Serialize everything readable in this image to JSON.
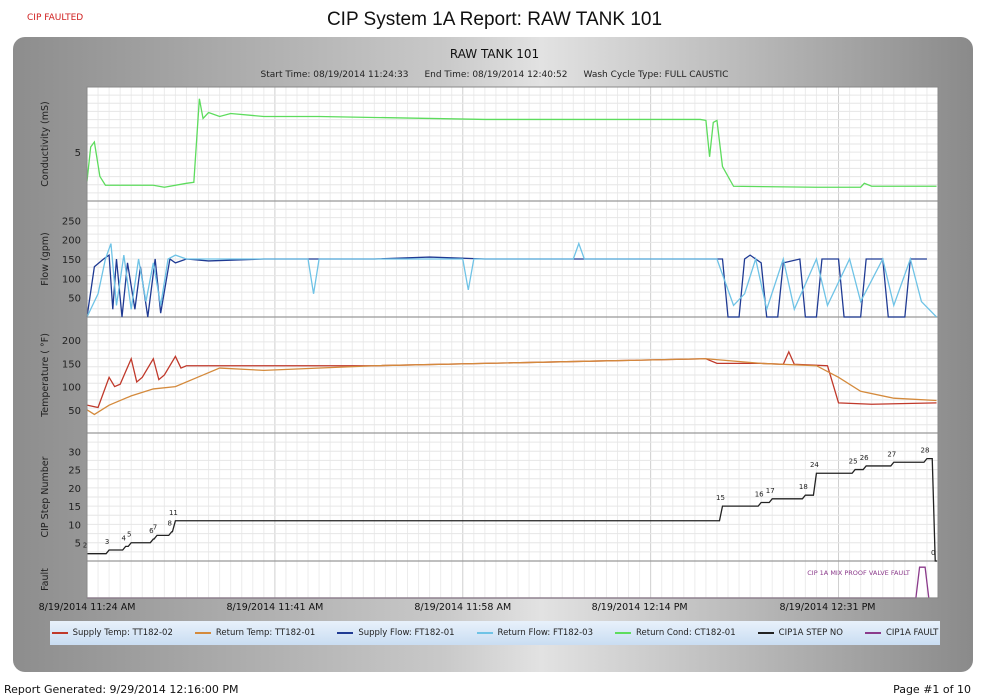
{
  "header": {
    "fault_status": "CIP FAULTED",
    "title": "CIP System 1A Report: RAW TANK 101"
  },
  "footer": {
    "generated": "Report Generated: 9/29/2014 12:16:00 PM",
    "page": "Page #1 of 10"
  },
  "chart_data": {
    "type": "line",
    "title": "RAW TANK 101",
    "subtitle": {
      "start": "Start Time: 08/19/2014 11:24:33",
      "end": "End Time: 08/19/2014 12:40:52",
      "wash": "Wash Cycle Type: FULL CAUSTIC"
    },
    "x_ticks": [
      "8/19/2014 11:24 AM",
      "8/19/2014 11:41 AM",
      "8/19/2014 11:58 AM",
      "8/19/2014 12:14 PM",
      "8/19/2014 12:31 PM"
    ],
    "x_tick_times": [
      "11:24:00",
      "11:41:00",
      "11:58:00",
      "12:14:00",
      "12:31:00"
    ],
    "xlim": [
      "11:24:00",
      "12:41:00"
    ],
    "grid": true,
    "legend_position": "bottom",
    "colors": {
      "supply_temp": "#c0392b",
      "return_temp": "#d48a3c",
      "supply_flow": "#1f3a93",
      "return_flow": "#6fc3e6",
      "return_cond": "#5ddc5d",
      "step": "#222222",
      "fault": "#8b3a8b"
    },
    "legend": [
      {
        "label": "Supply Temp: TT182-02",
        "color": "#c0392b"
      },
      {
        "label": "Return Temp: TT182-01",
        "color": "#d48a3c"
      },
      {
        "label": "Supply Flow: FT182-01",
        "color": "#1f3a93"
      },
      {
        "label": "Return Flow: FT182-03",
        "color": "#6fc3e6"
      },
      {
        "label": "Return Cond: CT182-01",
        "color": "#5ddc5d"
      },
      {
        "label": "CIP1A STEP NO",
        "color": "#222222"
      },
      {
        "label": "CIP1A FAULT",
        "color": "#8b3a8b"
      }
    ],
    "panels": [
      {
        "id": "conductivity",
        "ylabel": "Conductivity (mS)",
        "ylim": [
          0,
          11.6
        ],
        "yticks": [
          5
        ],
        "series": [
          {
            "key": "return_cond",
            "x": [
              "11:24:00",
              "11:24:20",
              "11:24:40",
              "11:25:10",
              "11:25:40",
              "11:30:00",
              "11:31:00",
              "11:33:00",
              "11:33:40",
              "11:34:10",
              "11:34:30",
              "11:35:00",
              "11:36:00",
              "11:37:00",
              "11:40:00",
              "11:45:00",
              "11:50:00",
              "12:00:00",
              "12:10:00",
              "12:19:30",
              "12:20:00",
              "12:20:20",
              "12:20:40",
              "12:21:00",
              "12:21:30",
              "12:22:30",
              "12:30:00",
              "12:34:00",
              "12:34:20",
              "12:35:00",
              "12:40:52"
            ],
            "y": [
              2,
              5.5,
              6,
              2.5,
              1.6,
              1.6,
              1.4,
              1.8,
              1.9,
              10.4,
              8.4,
              9.0,
              8.6,
              8.9,
              8.6,
              8.6,
              8.5,
              8.3,
              8.3,
              8.3,
              8.2,
              4.5,
              8.0,
              8.2,
              3.5,
              1.5,
              1.4,
              1.4,
              1.8,
              1.5,
              1.5
            ]
          }
        ]
      },
      {
        "id": "flow",
        "ylabel": "Flow (gpm)",
        "ylim": [
          0,
          300
        ],
        "yticks": [
          50,
          100,
          150,
          200,
          250
        ],
        "series": [
          {
            "key": "supply_flow",
            "x": [
              "11:24:00",
              "11:24:40",
              "11:25:30",
              "11:26:00",
              "11:26:20",
              "11:26:40",
              "11:27:10",
              "11:27:40",
              "11:28:20",
              "11:28:50",
              "11:29:30",
              "11:30:10",
              "11:30:40",
              "11:31:30",
              "11:32:00",
              "11:33:00",
              "11:35:00",
              "11:40:00",
              "11:45:00",
              "11:50:00",
              "11:55:00",
              "12:00:00",
              "12:05:00",
              "12:10:00",
              "12:15:00",
              "12:20:00",
              "12:21:30",
              "12:22:00",
              "12:23:00",
              "12:23:30",
              "12:24:00",
              "12:25:00",
              "12:25:30",
              "12:26:30",
              "12:27:00",
              "12:28:30",
              "12:29:00",
              "12:30:00",
              "12:30:30",
              "12:32:00",
              "12:32:30",
              "12:34:00",
              "12:34:30",
              "12:36:00",
              "12:36:30",
              "12:38:00",
              "12:38:30",
              "12:40:00"
            ],
            "y": [
              0,
              130,
              150,
              160,
              20,
              150,
              0,
              140,
              20,
              130,
              0,
              150,
              10,
              150,
              140,
              150,
              145,
              150,
              150,
              150,
              155,
              150,
              150,
              150,
              150,
              150,
              150,
              0,
              0,
              150,
              160,
              140,
              0,
              0,
              140,
              150,
              0,
              0,
              150,
              150,
              0,
              0,
              150,
              150,
              0,
              0,
              150,
              150
            ]
          },
          {
            "key": "return_flow",
            "x": [
              "11:24:00",
              "11:25:00",
              "11:25:40",
              "11:26:10",
              "11:26:40",
              "11:27:20",
              "11:28:00",
              "11:28:40",
              "11:29:20",
              "11:30:00",
              "11:30:40",
              "11:31:20",
              "11:32:00",
              "11:33:00",
              "11:40:00",
              "11:44:00",
              "11:44:30",
              "11:45:00",
              "11:55:00",
              "11:58:00",
              "11:58:30",
              "11:59:00",
              "12:08:00",
              "12:08:30",
              "12:09:00",
              "12:20:00",
              "12:21:00",
              "12:22:30",
              "12:23:30",
              "12:24:30",
              "12:25:30",
              "12:27:00",
              "12:28:00",
              "12:30:00",
              "12:31:00",
              "12:33:00",
              "12:34:00",
              "12:36:00",
              "12:37:00",
              "12:38:30",
              "12:39:30",
              "12:40:52"
            ],
            "y": [
              0,
              60,
              150,
              190,
              30,
              160,
              20,
              150,
              40,
              140,
              30,
              150,
              160,
              150,
              150,
              150,
              60,
              150,
              150,
              150,
              70,
              150,
              150,
              190,
              150,
              150,
              150,
              30,
              60,
              150,
              20,
              150,
              20,
              150,
              30,
              150,
              40,
              150,
              30,
              150,
              40,
              0
            ]
          }
        ]
      },
      {
        "id": "temperature",
        "ylabel": "Temperature ( °F)",
        "ylim": [
          0,
          250
        ],
        "yticks": [
          50,
          100,
          150,
          200
        ],
        "series": [
          {
            "key": "supply_temp",
            "x": [
              "11:24:00",
              "11:25:00",
              "11:26:00",
              "11:26:30",
              "11:27:00",
              "11:28:00",
              "11:28:30",
              "11:29:00",
              "11:30:00",
              "11:30:30",
              "11:31:00",
              "11:32:00",
              "11:32:30",
              "11:33:00",
              "11:40:00",
              "11:50:00",
              "12:00:00",
              "12:10:00",
              "12:20:00",
              "12:21:00",
              "12:25:00",
              "12:27:00",
              "12:27:30",
              "12:28:00",
              "12:31:00",
              "12:32:00",
              "12:35:00",
              "12:40:52"
            ],
            "y": [
              60,
              55,
              120,
              100,
              105,
              160,
              110,
              120,
              160,
              115,
              125,
              165,
              140,
              145,
              145,
              145,
              150,
              155,
              160,
              150,
              150,
              148,
              175,
              148,
              145,
              65,
              62,
              65
            ]
          },
          {
            "key": "return_temp",
            "x": [
              "11:24:00",
              "11:24:40",
              "11:26:00",
              "11:28:00",
              "11:30:00",
              "11:32:00",
              "11:34:00",
              "11:36:00",
              "11:40:00",
              "11:50:00",
              "12:00:00",
              "12:10:00",
              "12:20:00",
              "12:25:00",
              "12:30:00",
              "12:32:00",
              "12:34:00",
              "12:37:00",
              "12:40:52"
            ],
            "y": [
              50,
              40,
              60,
              80,
              95,
              100,
              120,
              140,
              135,
              145,
              150,
              155,
              160,
              150,
              145,
              120,
              90,
              75,
              70
            ]
          }
        ]
      },
      {
        "id": "step",
        "ylabel": "CIP Step Number",
        "ylim": [
          0,
          35
        ],
        "yticks": [
          5,
          10,
          15,
          20,
          25,
          30
        ],
        "series": [
          {
            "key": "step",
            "x": [
              "11:24:00",
              "11:26:00",
              "11:27:30",
              "11:28:00",
              "11:30:00",
              "11:30:20",
              "11:31:40",
              "11:32:00",
              "12:21:30",
              "12:25:00",
              "12:26:00",
              "12:29:00",
              "12:30:00",
              "12:33:30",
              "12:34:30",
              "12:37:00",
              "12:40:00",
              "12:40:45"
            ],
            "y": [
              2,
              3,
              4,
              5,
              6,
              7,
              8,
              11,
              15,
              16,
              17,
              18,
              24,
              25,
              26,
              27,
              28,
              0
            ],
            "labels": [
              "2",
              "3",
              "4",
              "5",
              "6",
              "7",
              "8",
              "11",
              "15",
              "16",
              "17",
              "18",
              "24",
              "25",
              "26",
              "27",
              "28",
              "0"
            ]
          }
        ]
      },
      {
        "id": "fault",
        "ylabel": "Fault",
        "ylim": [
          0,
          1.2
        ],
        "yticks": [],
        "series": [
          {
            "key": "fault",
            "x": [
              "11:24:00",
              "12:39:00",
              "12:39:20",
              "12:39:50",
              "12:40:10"
            ],
            "y": [
              0,
              0,
              1,
              1,
              0
            ]
          }
        ],
        "annotation": "CIP 1A MIX PROOF VALVE FAULT"
      }
    ]
  }
}
